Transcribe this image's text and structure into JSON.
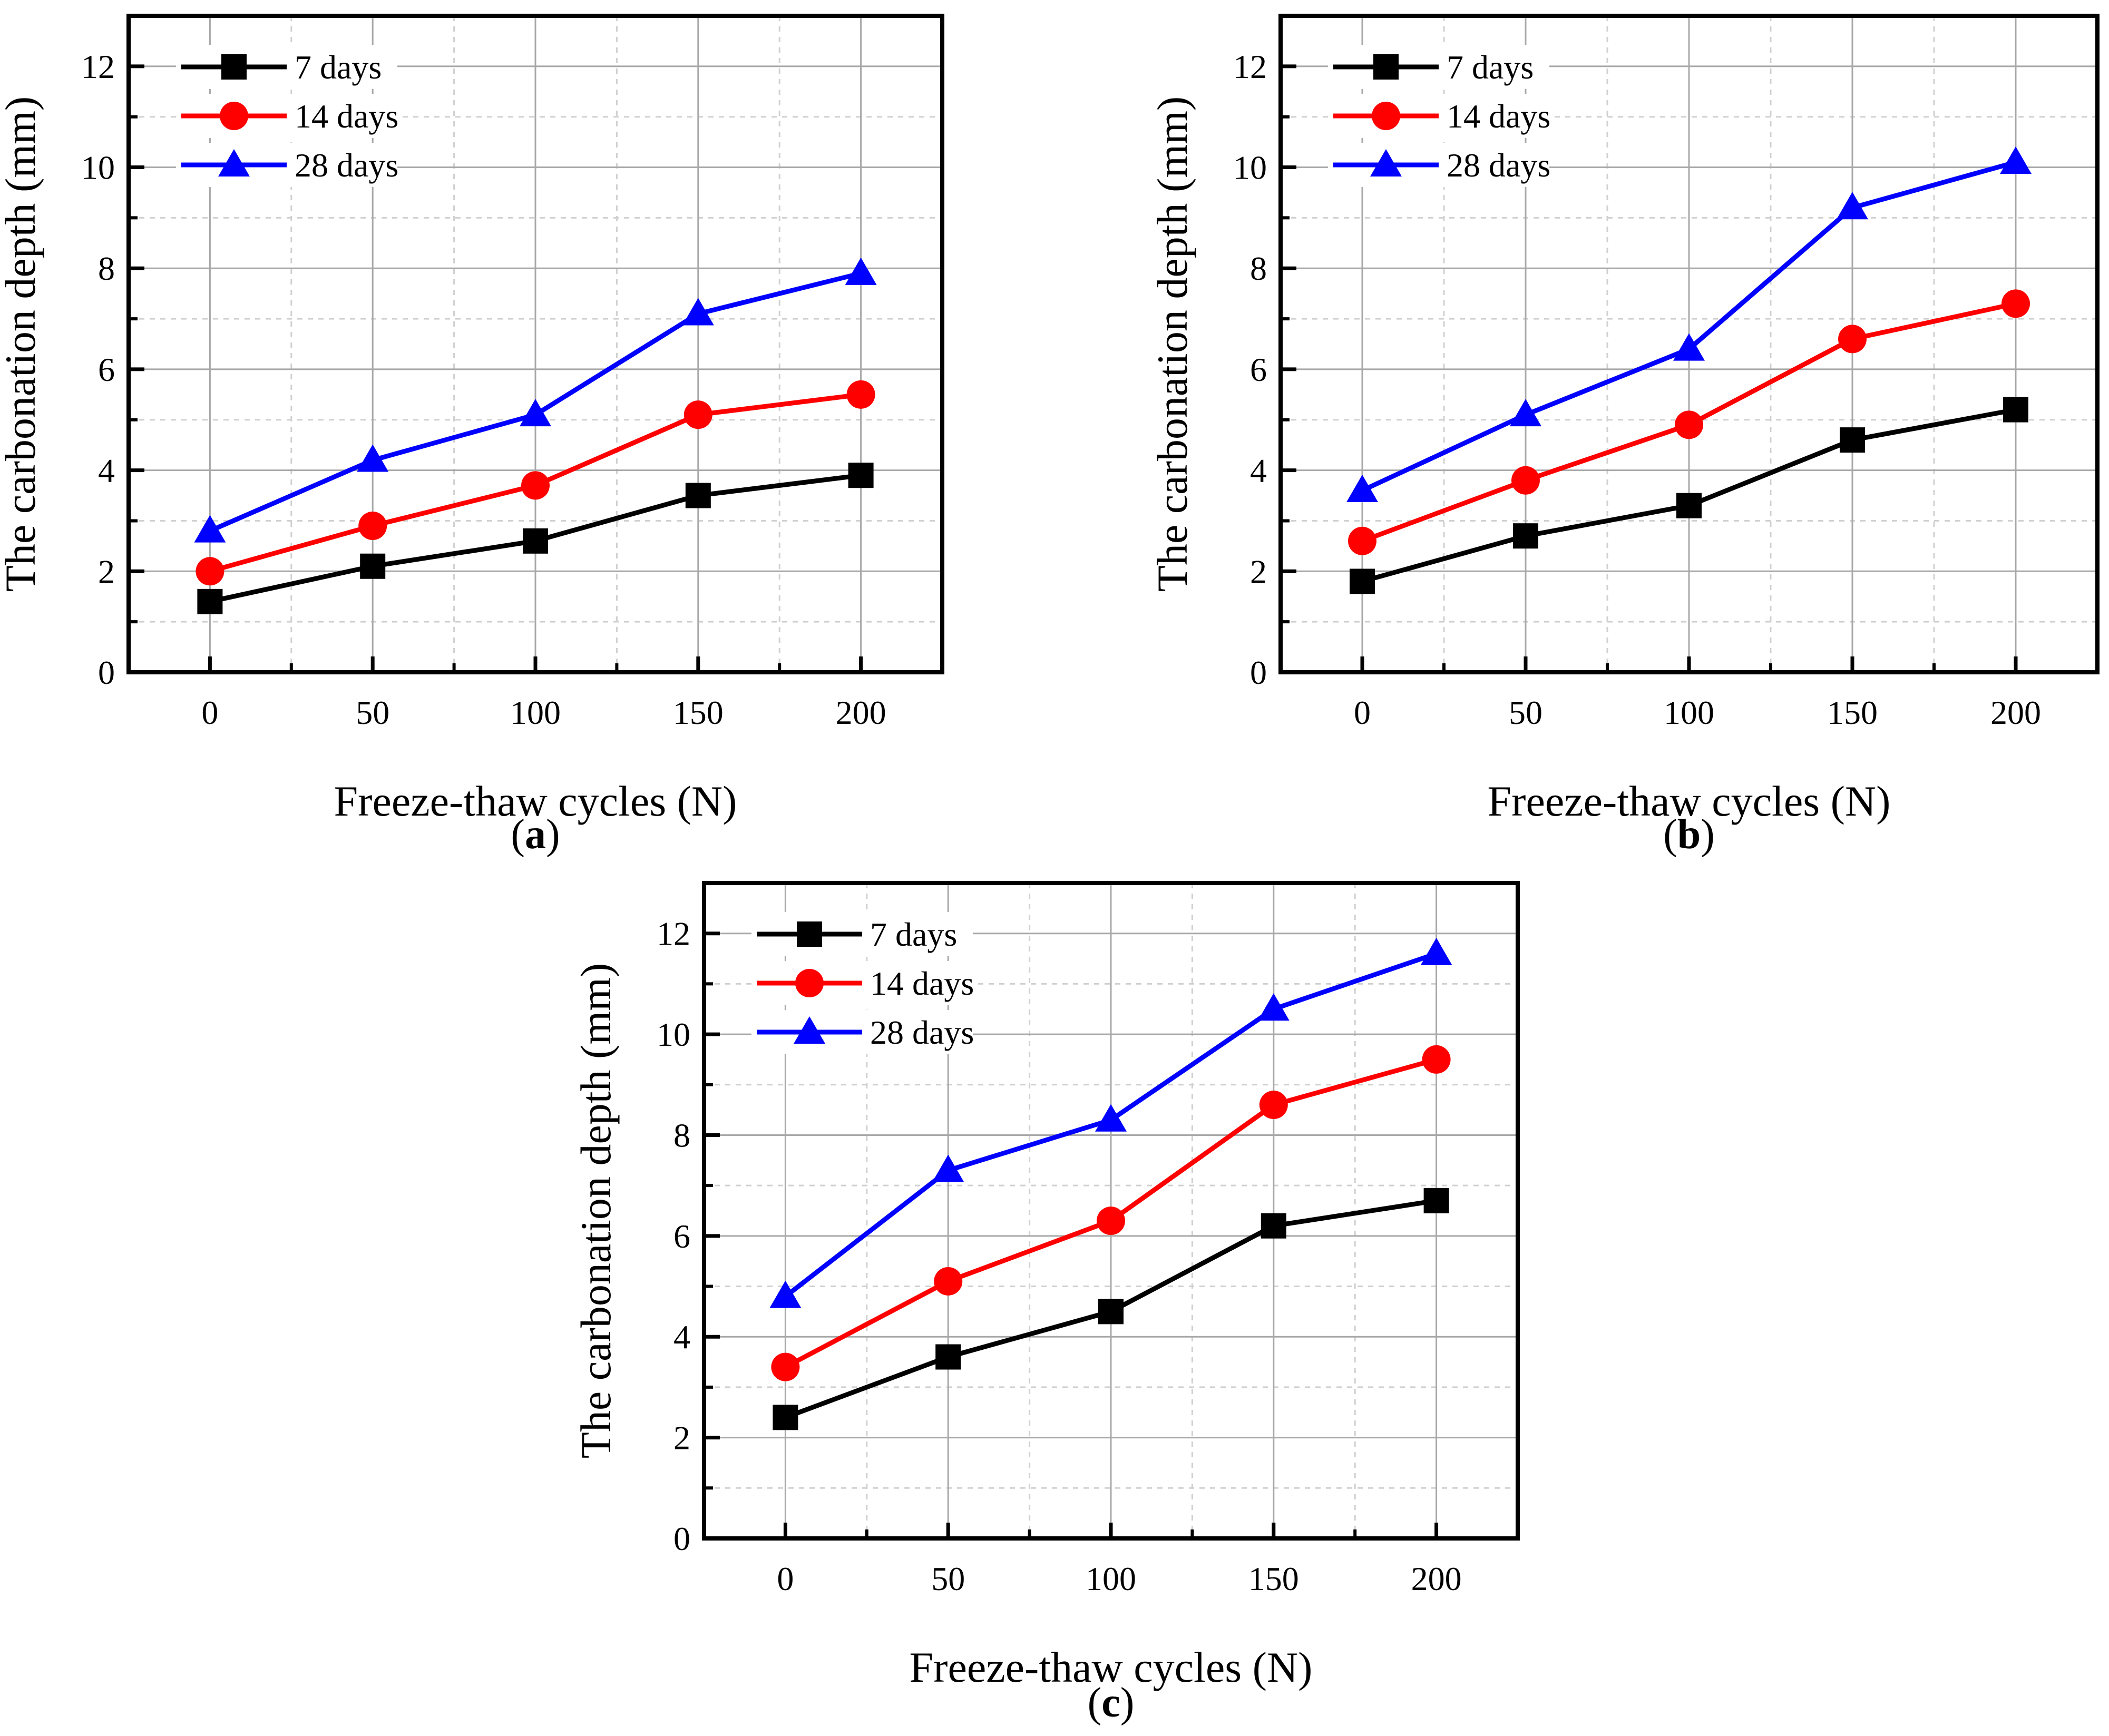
{
  "chart_data": [
    {
      "type": "line",
      "panel_label": "a",
      "xlabel": "Freeze-thaw cycles (N)",
      "ylabel": "The carbonation depth (mm)",
      "x": [
        0,
        50,
        100,
        150,
        200
      ],
      "xticks": [
        "0",
        "50",
        "100",
        "150",
        "200"
      ],
      "yticks": [
        "0",
        "2",
        "4",
        "6",
        "8",
        "10",
        "12"
      ],
      "xlim": [
        -25,
        225
      ],
      "ylim": [
        0,
        13
      ],
      "grid": true,
      "legend_position": "top-left",
      "series": [
        {
          "name": "7 days",
          "values": [
            1.4,
            2.1,
            2.6,
            3.5,
            3.9
          ],
          "color": "#000000",
          "marker": "square"
        },
        {
          "name": "14 days",
          "values": [
            2.0,
            2.9,
            3.7,
            5.1,
            5.5
          ],
          "color": "#ff0000",
          "marker": "circle"
        },
        {
          "name": "28 days",
          "values": [
            2.8,
            4.2,
            5.1,
            7.1,
            7.9
          ],
          "color": "#0000ff",
          "marker": "triangle"
        }
      ]
    },
    {
      "type": "line",
      "panel_label": "b",
      "xlabel": "Freeze-thaw cycles (N)",
      "ylabel": "The carbonation depth (mm)",
      "x": [
        0,
        50,
        100,
        150,
        200
      ],
      "xticks": [
        "0",
        "50",
        "100",
        "150",
        "200"
      ],
      "yticks": [
        "0",
        "2",
        "4",
        "6",
        "8",
        "10",
        "12"
      ],
      "xlim": [
        -25,
        225
      ],
      "ylim": [
        0,
        13
      ],
      "grid": true,
      "legend_position": "top-left",
      "series": [
        {
          "name": "7 days",
          "values": [
            1.8,
            2.7,
            3.3,
            4.6,
            5.2
          ],
          "color": "#000000",
          "marker": "square"
        },
        {
          "name": "14 days",
          "values": [
            2.6,
            3.8,
            4.9,
            6.6,
            7.3
          ],
          "color": "#ff0000",
          "marker": "circle"
        },
        {
          "name": "28 days",
          "values": [
            3.6,
            5.1,
            6.4,
            9.2,
            10.1
          ],
          "color": "#0000ff",
          "marker": "triangle"
        }
      ]
    },
    {
      "type": "line",
      "panel_label": "c",
      "xlabel": "Freeze-thaw cycles (N)",
      "ylabel": "The carbonation depth (mm)",
      "x": [
        0,
        50,
        100,
        150,
        200
      ],
      "xticks": [
        "0",
        "50",
        "100",
        "150",
        "200"
      ],
      "yticks": [
        "0",
        "2",
        "4",
        "6",
        "8",
        "10",
        "12"
      ],
      "xlim": [
        -25,
        225
      ],
      "ylim": [
        0,
        13
      ],
      "grid": true,
      "legend_position": "top-left",
      "series": [
        {
          "name": "7 days",
          "values": [
            2.4,
            3.6,
            4.5,
            6.2,
            6.7
          ],
          "color": "#000000",
          "marker": "square"
        },
        {
          "name": "14 days",
          "values": [
            3.4,
            5.1,
            6.3,
            8.6,
            9.5
          ],
          "color": "#ff0000",
          "marker": "circle"
        },
        {
          "name": "28 days",
          "values": [
            4.8,
            7.3,
            8.3,
            10.5,
            11.6
          ],
          "color": "#0000ff",
          "marker": "triangle"
        }
      ]
    }
  ]
}
